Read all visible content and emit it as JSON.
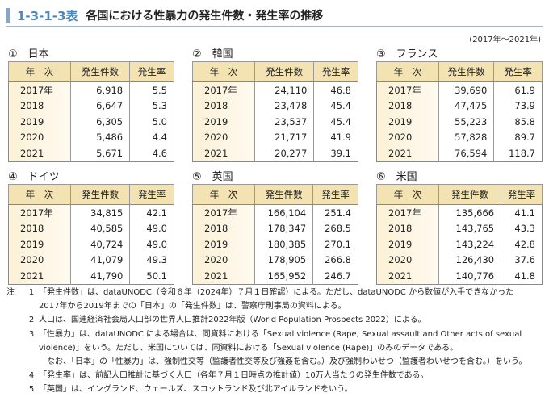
{
  "title": {
    "number": "1-3-1-3表",
    "text": "各国における性暴力の発生件数・発生率の推移"
  },
  "period": "(2017年～2021年)",
  "headers": [
    "年　次",
    "発生件数",
    "発生率"
  ],
  "countries": [
    {
      "label": "①　日本",
      "rows": [
        [
          "2017年",
          "6,918",
          "5.5"
        ],
        [
          "2018",
          "6,647",
          "5.3"
        ],
        [
          "2019",
          "6,305",
          "5.0"
        ],
        [
          "2020",
          "5,486",
          "4.4"
        ],
        [
          "2021",
          "5,671",
          "4.6"
        ]
      ]
    },
    {
      "label": "②　韓国",
      "rows": [
        [
          "2017年",
          "24,110",
          "46.8"
        ],
        [
          "2018",
          "23,478",
          "45.4"
        ],
        [
          "2019",
          "23,537",
          "45.4"
        ],
        [
          "2020",
          "21,717",
          "41.9"
        ],
        [
          "2021",
          "20,277",
          "39.1"
        ]
      ]
    },
    {
      "label": "③　フランス",
      "rows": [
        [
          "2017年",
          "39,690",
          "61.9"
        ],
        [
          "2018",
          "47,475",
          "73.9"
        ],
        [
          "2019",
          "55,223",
          "85.8"
        ],
        [
          "2020",
          "57,828",
          "89.7"
        ],
        [
          "2021",
          "76,594",
          "118.7"
        ]
      ]
    },
    {
      "label": "④　ドイツ",
      "rows": [
        [
          "2017年",
          "34,815",
          "42.1"
        ],
        [
          "2018",
          "40,585",
          "49.0"
        ],
        [
          "2019",
          "40,724",
          "49.0"
        ],
        [
          "2020",
          "41,079",
          "49.3"
        ],
        [
          "2021",
          "41,790",
          "50.1"
        ]
      ]
    },
    {
      "label": "⑤　英国",
      "rows": [
        [
          "2017年",
          "166,104",
          "251.4"
        ],
        [
          "2018",
          "178,347",
          "268.5"
        ],
        [
          "2019",
          "180,385",
          "270.1"
        ],
        [
          "2020",
          "178,905",
          "266.8"
        ],
        [
          "2021",
          "165,952",
          "246.7"
        ]
      ]
    },
    {
      "label": "⑥　米国",
      "rows": [
        [
          "2017年",
          "135,666",
          "41.1"
        ],
        [
          "2018",
          "143,765",
          "43.3"
        ],
        [
          "2019",
          "143,224",
          "42.8"
        ],
        [
          "2020",
          "126,430",
          "37.6"
        ],
        [
          "2021",
          "140,776",
          "41.8"
        ]
      ]
    }
  ],
  "notes": {
    "label": "注",
    "items": [
      {
        "k": "1",
        "lines": [
          "「発生件数」は、dataUNODC（令和６年（2024年）７月１日確認）による。ただし、dataUNODC から数値が入手できなかった",
          "2017年から2019年までの「日本」の「発生件数」は、警察庁刑事局の資料による。"
        ]
      },
      {
        "k": "2",
        "lines": [
          "人口は、国連経済社会局人口部の世界人口推計2022年版（World Population Prospects 2022）による。"
        ]
      },
      {
        "k": "3",
        "lines": [
          "「性暴力」は、dataUNODC による場合は、同資料における「Sexual violence (Rape, Sexual assault and Other acts of sexual",
          "violence)」をいう。ただし、米国については、同資料における「Sexual violence (Rape)」のみのデータである。",
          "なお、「日本」の「性暴力」は、強制性交等（監護者性交等及び強姦を含む。）及び強制わいせつ（監護者わいせつを含む。）をいう。"
        ]
      },
      {
        "k": "4",
        "lines": [
          "「発生率」は、前記人口推計に基づく人口（各年７月１日時点の推計値）10万人当たりの発生件数である。"
        ]
      },
      {
        "k": "5",
        "lines": [
          "「英国」は、イングランド、ウェールズ、スコットランド及び北アイルランドをいう。"
        ]
      }
    ]
  }
}
